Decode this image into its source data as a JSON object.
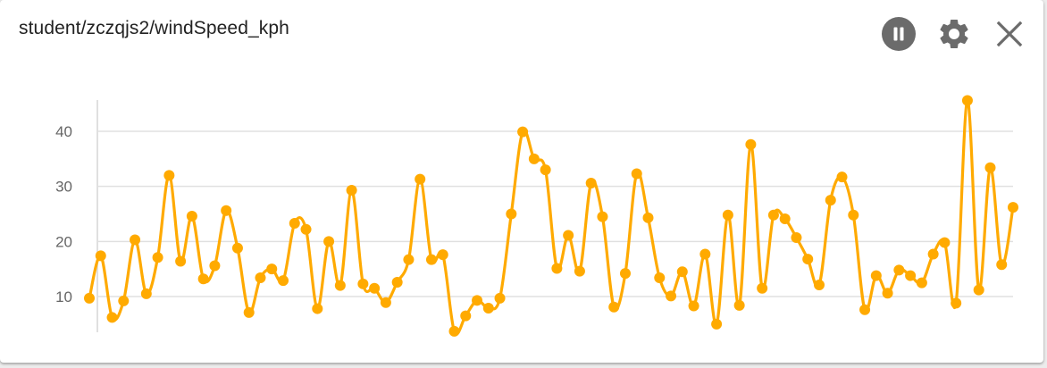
{
  "header": {
    "title": "student/zczqjs2/windSpeed_kph"
  },
  "toolbar": {
    "pause_icon": "pause-icon",
    "settings_icon": "gear-icon",
    "close_icon": "close-icon"
  },
  "colors": {
    "series": "#FFAA00",
    "grid": "#e0e0e0",
    "icon": "#6b6b6b"
  },
  "chart_data": {
    "type": "line",
    "title": "student/zczqjs2/windSpeed_kph",
    "xlabel": "",
    "ylabel": "",
    "ylim": [
      3,
      46
    ],
    "yticks": [
      10,
      20,
      30,
      40
    ],
    "grid": true,
    "series": [
      {
        "values": [
          9.7,
          17.4,
          6.2,
          9.2,
          20.3,
          10.5,
          17.1,
          32.0,
          16.4,
          24.6,
          13.2,
          15.6,
          25.6,
          18.8,
          7.1,
          13.4,
          15.0,
          12.9,
          23.3,
          22.2,
          7.8,
          20.0,
          12.0,
          29.3,
          12.3,
          11.5,
          8.9,
          12.6,
          16.7,
          31.3,
          16.7,
          17.6,
          3.7,
          6.5,
          9.3,
          7.9,
          9.7,
          25.0,
          39.9,
          35.0,
          33.0,
          15.1,
          21.1,
          14.6,
          30.6,
          24.5,
          8.1,
          14.2,
          32.3,
          24.3,
          13.4,
          10.1,
          14.5,
          8.3,
          17.7,
          5.0,
          24.8,
          8.4,
          37.6,
          11.5,
          24.8,
          24.1,
          20.7,
          16.8,
          12.1,
          27.5,
          31.7,
          24.8,
          7.6,
          13.8,
          10.6,
          14.8,
          13.8,
          12.5,
          17.7,
          19.8,
          8.8,
          45.6,
          11.2,
          33.4,
          15.8,
          26.2
        ]
      }
    ]
  }
}
